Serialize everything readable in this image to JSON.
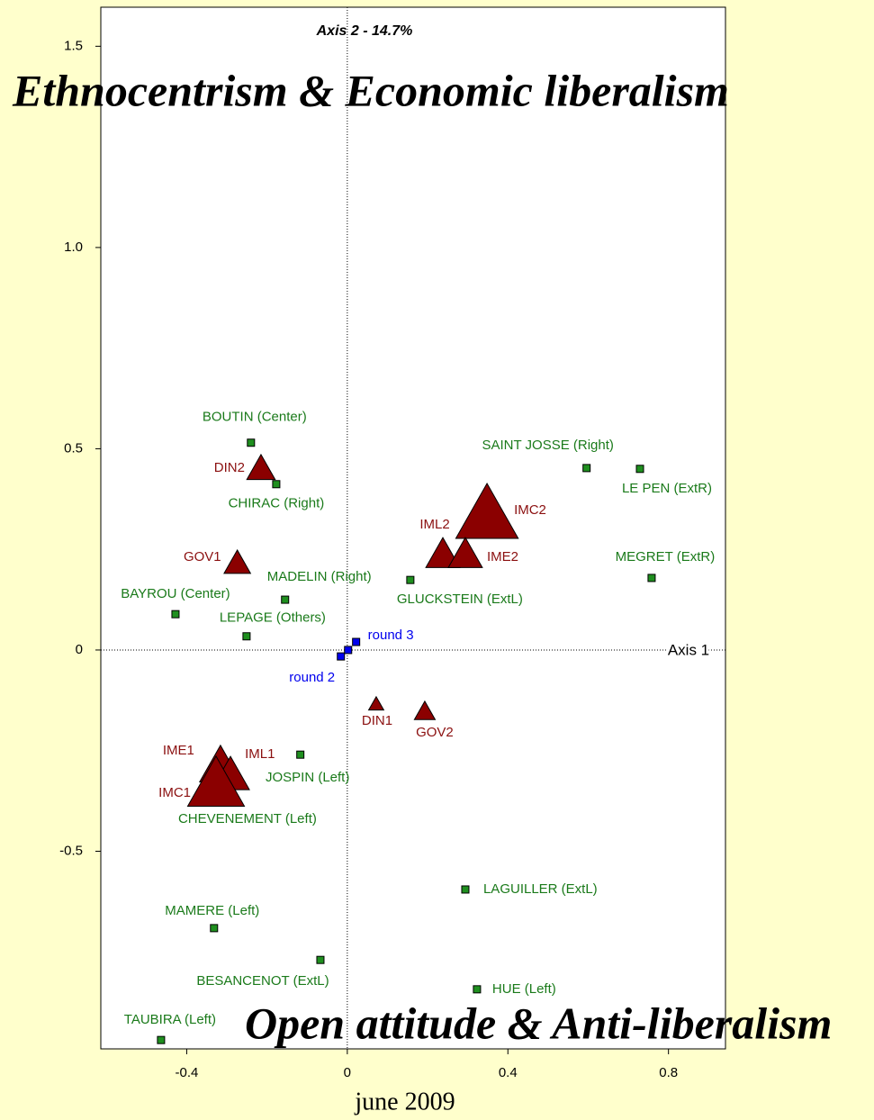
{
  "chart_data": {
    "type": "scatter",
    "x_axis_label": "Axis 1",
    "y_axis_label": "Axis 2 - 14.7%",
    "annotations": [
      "Ethnocentrism & Economic liberalism",
      "Open attitude & Anti-liberalism"
    ],
    "caption": "june 2009",
    "xlim": [
      -0.614,
      0.942
    ],
    "ylim": [
      -0.991,
      1.597
    ],
    "xticks": [
      -0.4,
      0,
      0.4,
      0.8
    ],
    "yticks": [
      1.5,
      {
        "value": 1,
        "label": "1.0"
      },
      0.5,
      0,
      -0.5
    ],
    "series": [
      {
        "marker": "square",
        "color": "#1f8f1f",
        "label_color": "#1a7a1a",
        "labels": [
          "BOUTIN (Center)",
          "CHIRAC (Right)",
          "SAINT JOSSE (Right)",
          "LE PEN (ExtR)",
          "MEGRET (ExtR)",
          "MADELIN (Right)",
          "GLUCKSTEIN (ExtL)",
          "BAYROU (Center)",
          "LEPAGE (Others)",
          "JOSPIN (Left)",
          "LAGUILLER (ExtL)",
          "MAMERE (Left)",
          "BESANCENOT (ExtL)",
          "HUE (Left)",
          "TAUBIRA (Left)",
          "CHEVENEMENT (Left)"
        ],
        "x": [
          -0.24,
          -0.177,
          0.596,
          0.729,
          0.758,
          -0.155,
          0.157,
          -0.428,
          -0.251,
          -0.117,
          0.294,
          -0.332,
          -0.067,
          0.323,
          -0.464,
          -0.316
        ],
        "y": [
          0.515,
          0.412,
          0.452,
          0.45,
          0.179,
          0.125,
          0.174,
          0.089,
          0.034,
          -0.26,
          -0.595,
          -0.691,
          -0.77,
          -0.843,
          -0.969,
          -0.331
        ]
      },
      {
        "marker": "triangle",
        "color": "#8b0000",
        "label_color": "#8b1010",
        "labels": [
          "DIN2",
          "GOV1",
          "IMC2",
          "IML2",
          "IME2",
          "DIN1",
          "GOV2",
          "IME1",
          "IML1",
          "IMC1"
        ],
        "x": [
          -0.215,
          -0.274,
          0.348,
          0.238,
          0.294,
          0.072,
          0.193,
          -0.316,
          -0.291,
          -0.327
        ],
        "y": [
          0.452,
          0.217,
          0.34,
          0.239,
          0.239,
          -0.134,
          -0.152,
          -0.286,
          -0.309,
          -0.331
        ],
        "sizes": [
          15,
          14,
          33,
          18,
          18,
          8,
          11,
          22,
          20,
          30
        ]
      },
      {
        "marker": "square",
        "color": "#0000ee",
        "label_color": "#0000ee",
        "labels": [
          "round 2",
          null,
          "round 3"
        ],
        "x": [
          -0.016,
          0.002,
          0.022
        ],
        "y": [
          -0.016,
          0.0,
          0.02
        ]
      }
    ]
  }
}
